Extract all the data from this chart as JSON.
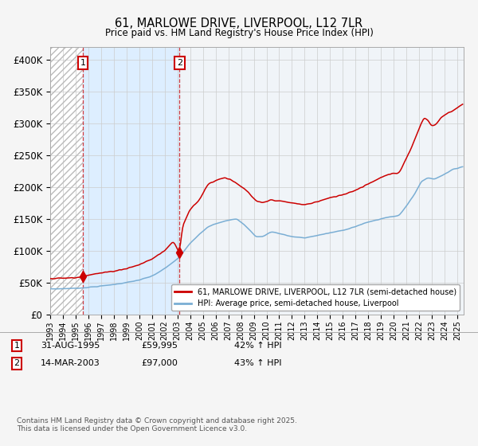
{
  "title": "61, MARLOWE DRIVE, LIVERPOOL, L12 7LR",
  "subtitle": "Price paid vs. HM Land Registry's House Price Index (HPI)",
  "ylim": [
    0,
    420000
  ],
  "yticks": [
    0,
    50000,
    100000,
    150000,
    200000,
    250000,
    300000,
    350000,
    400000
  ],
  "ytick_labels": [
    "£0",
    "£50K",
    "£100K",
    "£150K",
    "£200K",
    "£250K",
    "£300K",
    "£350K",
    "£400K"
  ],
  "line1_color": "#cc0000",
  "line2_color": "#7aaed4",
  "bg_color": "#f5f5f5",
  "plot_bg": "#f0f4f8",
  "shaded_region_color": "#ddeeff",
  "hatch_color": "#bbbbbb",
  "grid_color": "#cccccc",
  "purchase1_price": 59995,
  "purchase2_price": 97000,
  "legend1": "61, MARLOWE DRIVE, LIVERPOOL, L12 7LR (semi-detached house)",
  "legend2": "HPI: Average price, semi-detached house, Liverpool",
  "annot1_date": "31-AUG-1995",
  "annot1_price": "£59,995",
  "annot1_hpi": "42% ↑ HPI",
  "annot2_date": "14-MAR-2003",
  "annot2_price": "£97,000",
  "annot2_hpi": "43% ↑ HPI",
  "footnote": "Contains HM Land Registry data © Crown copyright and database right 2025.\nThis data is licensed under the Open Government Licence v3.0."
}
